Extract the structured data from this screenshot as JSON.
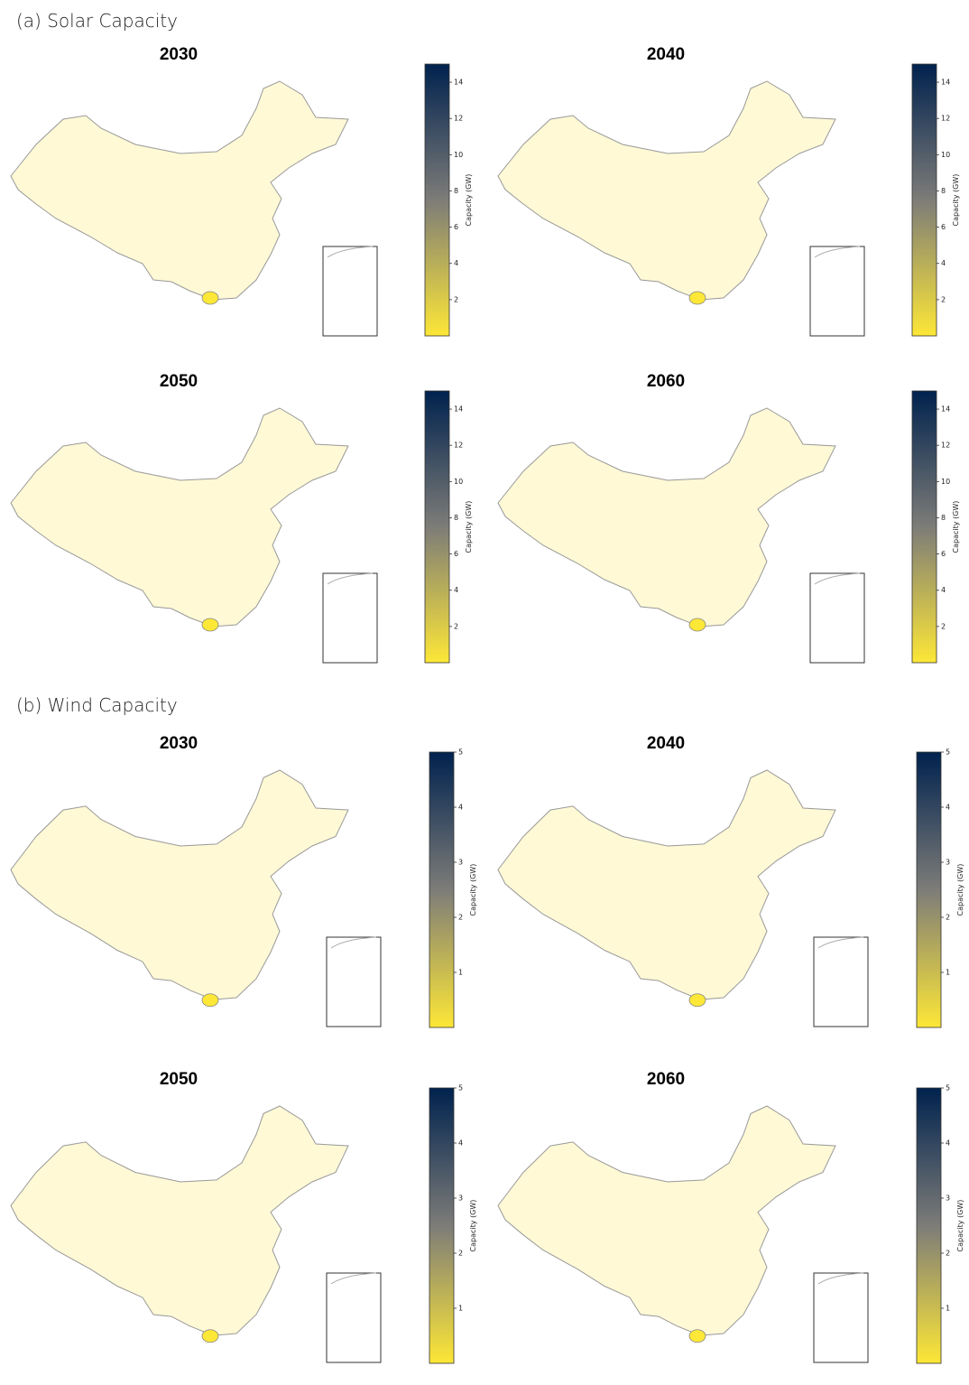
{
  "sections": [
    {
      "title": "(a) Solar Capacity",
      "panels": [
        "2030",
        "2040",
        "2050",
        "2060"
      ],
      "colorbar": {
        "label": "Capacity (GW)",
        "lim": [
          0,
          15
        ],
        "ticks": [
          2,
          4,
          6,
          8,
          10,
          12,
          14
        ]
      }
    },
    {
      "title": "(b) Wind Capacity",
      "panels": [
        "2030",
        "2040",
        "2050",
        "2060"
      ],
      "colorbar": {
        "label": "Capacity (GW)",
        "lim": [
          0,
          5
        ],
        "ticks": [
          1,
          2,
          3,
          4,
          5
        ]
      }
    }
  ],
  "colormap": [
    "#fde737",
    "#7d7c78",
    "#00224e"
  ]
}
